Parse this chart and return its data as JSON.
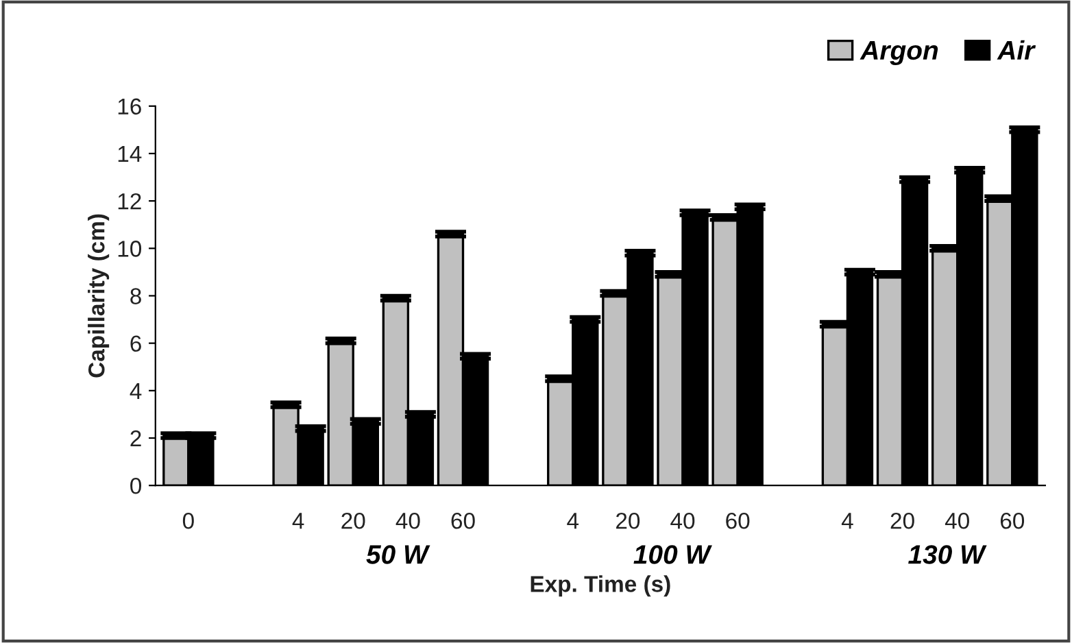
{
  "chart_data": {
    "type": "bar",
    "xlabel": "Exp. Time (s)",
    "ylabel": "Capillarity (cm)",
    "categories": [
      "0",
      null,
      "4",
      "20",
      "40",
      "60",
      null,
      "4",
      "20",
      "40",
      "60",
      null,
      "4",
      "20",
      "40",
      "60"
    ],
    "series": [
      {
        "name": "Argon",
        "color": "#c0c0c0",
        "values": [
          2.1,
          null,
          3.4,
          6.1,
          7.9,
          10.6,
          null,
          4.5,
          8.1,
          8.9,
          11.3,
          null,
          6.8,
          8.9,
          10.0,
          12.1
        ],
        "errors": [
          0.1,
          null,
          0.1,
          0.1,
          0.1,
          0.1,
          null,
          0.1,
          0.1,
          0.1,
          0.1,
          null,
          0.1,
          0.1,
          0.1,
          0.1
        ]
      },
      {
        "name": "Air",
        "color": "#000000",
        "values": [
          2.1,
          null,
          2.4,
          2.7,
          3.0,
          5.45,
          null,
          7.0,
          9.8,
          11.5,
          11.75,
          null,
          9.0,
          12.9,
          13.3,
          15.0
        ],
        "errors": [
          0.1,
          null,
          0.1,
          0.1,
          0.1,
          0.1,
          null,
          0.1,
          0.1,
          0.1,
          0.1,
          null,
          0.1,
          0.1,
          0.1,
          0.1
        ]
      }
    ],
    "ylim": [
      0,
      16
    ],
    "yticks": [
      0,
      2,
      4,
      6,
      8,
      10,
      12,
      14,
      16
    ],
    "annotations": [
      "50 W",
      "100 W",
      "130 W"
    ],
    "legend": "top right",
    "grid": false
  }
}
